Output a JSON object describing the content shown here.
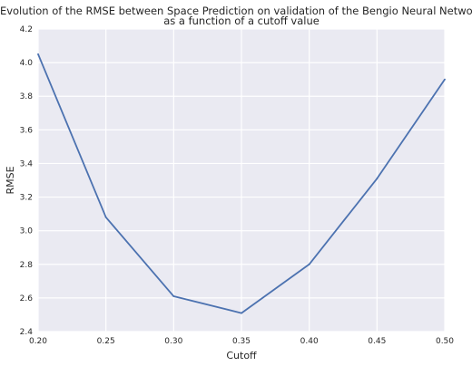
{
  "chart_data": {
    "type": "line",
    "title": "Evolution of the RMSE between Space Prediction on validation of the Bengio Neural Network",
    "subtitle": "as a function of a cutoff value",
    "xlabel": "Cutoff",
    "ylabel": "RMSE",
    "x": [
      0.2,
      0.25,
      0.3,
      0.35,
      0.4,
      0.45,
      0.5
    ],
    "series": [
      {
        "values": [
          4.05,
          3.08,
          2.61,
          2.51,
          2.8,
          3.31,
          3.9
        ]
      }
    ],
    "xlim": [
      0.2,
      0.5
    ],
    "ylim": [
      2.4,
      4.2
    ],
    "xticks": [
      "0.20",
      "0.25",
      "0.30",
      "0.35",
      "0.40",
      "0.45",
      "0.50"
    ],
    "yticks": [
      "2.4",
      "2.6",
      "2.8",
      "3.0",
      "3.2",
      "3.4",
      "3.6",
      "3.8",
      "4.0",
      "4.2"
    ],
    "grid": true,
    "background_color": "#eaeaf2",
    "grid_color": "#ffffff",
    "line_color": "#4c72b0"
  }
}
